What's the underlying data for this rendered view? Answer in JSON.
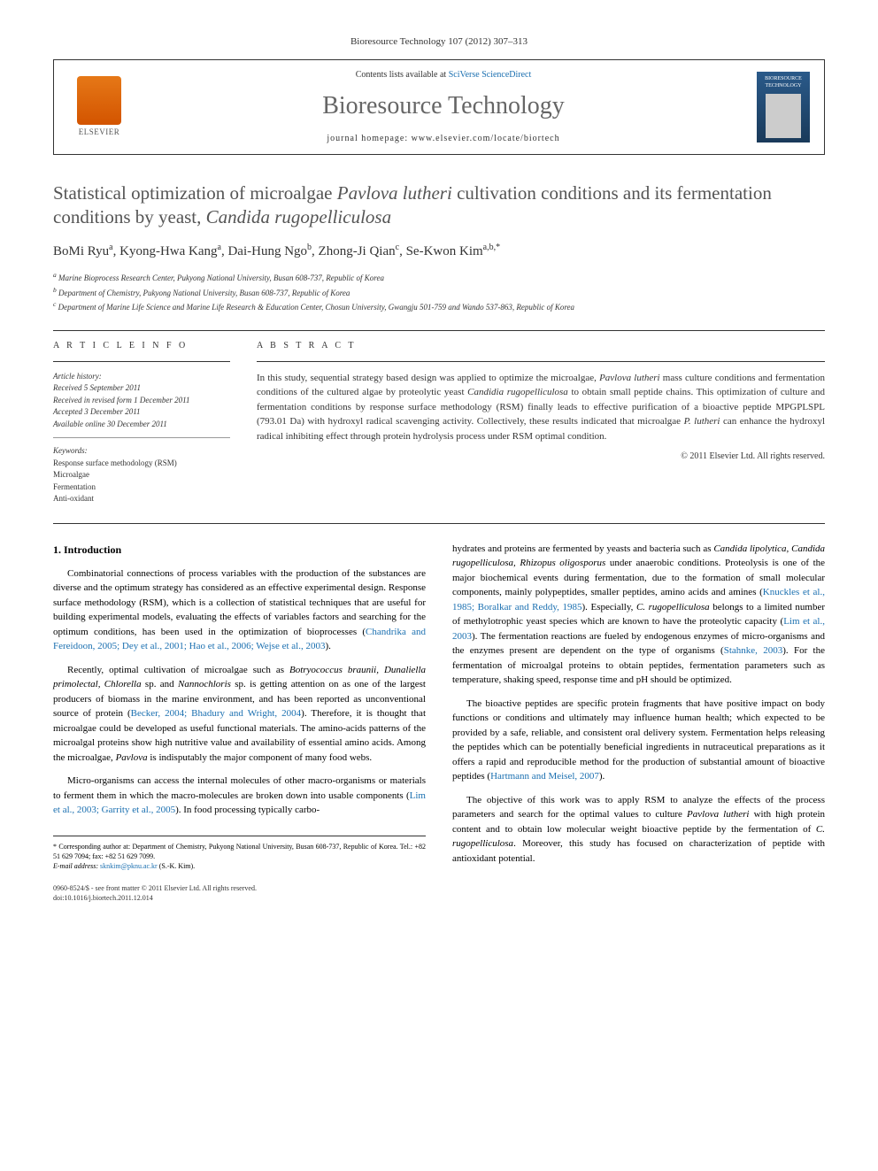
{
  "citation": "Bioresource Technology 107 (2012) 307–313",
  "header": {
    "contents_prefix": "Contents lists available at ",
    "contents_link": "SciVerse ScienceDirect",
    "journal": "Bioresource Technology",
    "homepage_prefix": "journal homepage: ",
    "homepage": "www.elsevier.com/locate/biortech",
    "publisher_label": "ELSEVIER",
    "cover_title": "BIORESOURCE TECHNOLOGY"
  },
  "title_parts": {
    "p1": "Statistical optimization of microalgae ",
    "p2": "Pavlova lutheri",
    "p3": " cultivation conditions and its fermentation conditions by yeast, ",
    "p4": "Candida rugopelliculosa"
  },
  "authors_html": "BoMi Ryu<sup>a</sup>, Kyong-Hwa Kang<sup>a</sup>, Dai-Hung Ngo<sup>b</sup>, Zhong-Ji Qian<sup>c</sup>, Se-Kwon Kim<sup>a,b,*</sup>",
  "affiliations": [
    "a Marine Bioprocess Research Center, Pukyong National University, Busan 608-737, Republic of Korea",
    "b Department of Chemistry, Pukyong National University, Busan 608-737, Republic of Korea",
    "c Department of Marine Life Science and Marine Life Research & Education Center, Chosun University, Gwangju 501-759 and Wando 537-863, Republic of Korea"
  ],
  "info": {
    "heading": "A R T I C L E   I N F O",
    "history_label": "Article history:",
    "history": [
      "Received 5 September 2011",
      "Received in revised form 1 December 2011",
      "Accepted 3 December 2011",
      "Available online 30 December 2011"
    ],
    "keywords_label": "Keywords:",
    "keywords": [
      "Response surface methodology (RSM)",
      "Microalgae",
      "Fermentation",
      "Anti-oxidant"
    ]
  },
  "abstract": {
    "heading": "A B S T R A C T",
    "text_parts": {
      "p1": "In this study, sequential strategy based design was applied to optimize the microalgae, ",
      "p2": "Pavlova lutheri",
      "p3": " mass culture conditions and fermentation conditions of the cultured algae by proteolytic yeast ",
      "p4": "Candidia rugopelliculosa",
      "p5": " to obtain small peptide chains. This optimization of culture and fermentation conditions by response surface methodology (RSM) finally leads to effective purification of a bioactive peptide MPGPLSPL (793.01 Da) with hydroxyl radical scavenging activity. Collectively, these results indicated that microalgae ",
      "p6": "P. lutheri",
      "p7": " can enhance the hydroxyl radical inhibiting effect through protein hydrolysis process under RSM optimal condition."
    },
    "copyright": "© 2011 Elsevier Ltd. All rights reserved."
  },
  "body": {
    "section_heading": "1. Introduction",
    "col1": {
      "para1": "Combinatorial connections of process variables with the production of the substances are diverse and the optimum strategy has considered as an effective experimental design. Response surface methodology (RSM), which is a collection of statistical techniques that are useful for building experimental models, evaluating the effects of variables factors and searching for the optimum conditions, has been used in the optimization of bioprocesses (",
      "para1_link1": "Chandrika and Fereidoon, 2005; Dey et al., 2001; Hao et al., 2006; Wejse et al., 2003",
      "para1_tail": ").",
      "para2_p1": "Recently, optimal cultivation of microalgae such as ",
      "para2_i1": "Botryococcus braunii, Dunaliella primolectal, Chlorella",
      "para2_p2": " sp. and ",
      "para2_i2": "Nannochloris",
      "para2_p3": " sp. is getting attention on as one of the largest producers of biomass in the marine environment, and has been reported as unconventional source of protein (",
      "para2_link1": "Becker, 2004; Bhadury and Wright, 2004",
      "para2_p4": "). Therefore, it is thought that microalgae could be developed as useful functional materials. The amino-acids patterns of the microalgal proteins show high nutritive value and availability of essential amino acids. Among the microalgae, ",
      "para2_i3": "Pavlova",
      "para2_p5": " is indisputably the major component of many food webs.",
      "para3_p1": "Micro-organisms can access the internal molecules of other macro-organisms or materials to ferment them in which the macro-molecules are broken down into usable components (",
      "para3_link1": "Lim et al., 2003; Garrity et al., 2005",
      "para3_p2": "). In food processing typically carbo-"
    },
    "col2": {
      "para1_p1": "hydrates and proteins are fermented by yeasts and bacteria such as ",
      "para1_i1": "Candida lipolytica, Candida rugopelliculosa, Rhizopus oligosporus",
      "para1_p2": " under anaerobic conditions. Proteolysis is one of the major biochemical events during fermentation, due to the formation of small molecular components, mainly polypeptides, smaller peptides, amino acids and amines (",
      "para1_link1": "Knuckles et al., 1985; Boralkar and Reddy, 1985",
      "para1_p3": "). Especially, ",
      "para1_i2": "C. rugopelliculosa",
      "para1_p4": " belongs to a limited number of methylotrophic yeast species which are known to have the proteolytic capacity (",
      "para1_link2": "Lim et al., 2003",
      "para1_p5": "). The fermentation reactions are fueled by endogenous enzymes of micro-organisms and the enzymes present are dependent on the type of organisms (",
      "para1_link3": "Stahnke, 2003",
      "para1_p6": "). For the fermentation of microalgal proteins to obtain peptides, fermentation parameters such as temperature, shaking speed, response time and pH should be optimized.",
      "para2_p1": "The bioactive peptides are specific protein fragments that have positive impact on body functions or conditions and ultimately may influence human health; which expected to be provided by a safe, reliable, and consistent oral delivery system. Fermentation helps releasing the peptides which can be potentially beneficial ingredients in nutraceutical preparations as it offers a rapid and reproducible method for the production of substantial amount of bioactive peptides (",
      "para2_link1": "Hartmann and Meisel, 2007",
      "para2_p2": ").",
      "para3_p1": "The objective of this work was to apply RSM to analyze the effects of the process parameters and search for the optimal values to culture ",
      "para3_i1": "Pavlova lutheri",
      "para3_p2": " with high protein content and to obtain low molecular weight bioactive peptide by the fermentation of ",
      "para3_i2": "C. rugopelliculosa",
      "para3_p3": ". Moreover, this study has focused on characterization of peptide with antioxidant potential."
    }
  },
  "footnote": {
    "corr": "* Corresponding author at: Department of Chemistry, Pukyong National University, Busan 608-737, Republic of Korea. Tel.: +82 51 629 7094; fax: +82 51 629 7099.",
    "email_label": "E-mail address: ",
    "email": "sknkim@pknu.ac.kr",
    "email_suffix": " (S.-K. Kim)."
  },
  "footer": {
    "line1": "0960-8524/$ - see front matter © 2011 Elsevier Ltd. All rights reserved.",
    "line2": "doi:10.1016/j.biortech.2011.12.014"
  }
}
